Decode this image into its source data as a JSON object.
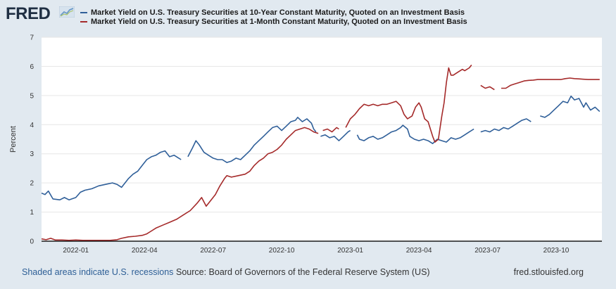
{
  "brand": {
    "name": "FRED",
    "icon": "chart-trend-icon"
  },
  "chart_data": {
    "type": "line",
    "title": "",
    "xlabel": "",
    "ylabel": "Percent",
    "ylim": [
      0,
      7
    ],
    "xlim": [
      0,
      24.5
    ],
    "x_unit": "months since 2021-11-16",
    "grid": true,
    "y_ticks": [
      "0",
      "1",
      "2",
      "3",
      "4",
      "5",
      "6",
      "7"
    ],
    "x_ticks": [
      {
        "label": "2022-01",
        "x": 1.5
      },
      {
        "label": "2022-04",
        "x": 4.5
      },
      {
        "label": "2022-07",
        "x": 7.5
      },
      {
        "label": "2022-10",
        "x": 10.5
      },
      {
        "label": "2023-01",
        "x": 13.5
      },
      {
        "label": "2023-04",
        "x": 16.5
      },
      {
        "label": "2023-07",
        "x": 19.5
      },
      {
        "label": "2023-10",
        "x": 22.5
      }
    ],
    "series": [
      {
        "name": "Market Yield on U.S. Treasury Securities at 10-Year Constant Maturity, Quoted on an Investment Basis",
        "color": "#2f5f99",
        "points": [
          [
            0.0,
            1.65
          ],
          [
            0.15,
            1.6
          ],
          [
            0.3,
            1.72
          ],
          [
            0.5,
            1.45
          ],
          [
            0.8,
            1.42
          ],
          [
            1.0,
            1.5
          ],
          [
            1.2,
            1.42
          ],
          [
            1.5,
            1.5
          ],
          [
            1.7,
            1.68
          ],
          [
            1.9,
            1.75
          ],
          [
            2.2,
            1.8
          ],
          [
            2.5,
            1.9
          ],
          [
            2.8,
            1.95
          ],
          [
            3.1,
            2.0
          ],
          [
            3.3,
            1.95
          ],
          [
            3.5,
            1.85
          ],
          [
            3.8,
            2.15
          ],
          [
            4.0,
            2.3
          ],
          [
            4.2,
            2.4
          ],
          [
            4.4,
            2.6
          ],
          [
            4.6,
            2.8
          ],
          [
            4.8,
            2.9
          ],
          [
            5.0,
            2.95
          ],
          [
            5.2,
            3.05
          ],
          [
            5.4,
            3.1
          ],
          [
            5.6,
            2.9
          ],
          [
            5.8,
            2.95
          ],
          [
            6.0,
            2.85
          ],
          [
            6.1,
            2.8
          ],
          null,
          [
            6.4,
            2.9
          ],
          [
            6.6,
            3.2
          ],
          [
            6.75,
            3.45
          ],
          [
            6.9,
            3.3
          ],
          [
            7.1,
            3.05
          ],
          [
            7.3,
            2.95
          ],
          [
            7.5,
            2.85
          ],
          [
            7.7,
            2.8
          ],
          [
            7.9,
            2.8
          ],
          [
            8.1,
            2.7
          ],
          [
            8.3,
            2.75
          ],
          [
            8.5,
            2.85
          ],
          [
            8.7,
            2.8
          ],
          [
            8.9,
            2.95
          ],
          [
            9.1,
            3.1
          ],
          [
            9.3,
            3.3
          ],
          [
            9.5,
            3.45
          ],
          [
            9.7,
            3.6
          ],
          [
            9.9,
            3.75
          ],
          [
            10.1,
            3.9
          ],
          [
            10.3,
            3.95
          ],
          [
            10.5,
            3.8
          ],
          [
            10.7,
            3.95
          ],
          [
            10.9,
            4.1
          ],
          [
            11.1,
            4.15
          ],
          [
            11.2,
            4.25
          ],
          [
            11.4,
            4.1
          ],
          [
            11.6,
            4.2
          ],
          [
            11.8,
            4.05
          ],
          [
            11.9,
            3.85
          ],
          [
            12.0,
            3.75
          ],
          null,
          [
            12.2,
            3.6
          ],
          [
            12.4,
            3.65
          ],
          [
            12.6,
            3.55
          ],
          [
            12.8,
            3.6
          ],
          [
            13.0,
            3.45
          ],
          [
            13.2,
            3.6
          ],
          [
            13.4,
            3.75
          ],
          [
            13.5,
            3.8
          ],
          null,
          [
            13.8,
            3.65
          ],
          [
            13.9,
            3.5
          ],
          [
            14.1,
            3.45
          ],
          [
            14.3,
            3.55
          ],
          [
            14.5,
            3.6
          ],
          [
            14.7,
            3.5
          ],
          [
            14.9,
            3.55
          ],
          [
            15.1,
            3.65
          ],
          [
            15.3,
            3.75
          ],
          [
            15.5,
            3.8
          ],
          [
            15.7,
            3.9
          ],
          [
            15.8,
            3.98
          ],
          [
            16.0,
            3.85
          ],
          [
            16.1,
            3.6
          ],
          [
            16.3,
            3.5
          ],
          [
            16.5,
            3.45
          ],
          [
            16.7,
            3.5
          ],
          [
            16.9,
            3.45
          ],
          [
            17.1,
            3.35
          ],
          [
            17.3,
            3.5
          ],
          [
            17.5,
            3.45
          ],
          [
            17.7,
            3.4
          ],
          [
            17.9,
            3.55
          ],
          [
            18.1,
            3.5
          ],
          [
            18.3,
            3.55
          ],
          [
            18.5,
            3.65
          ],
          [
            18.7,
            3.75
          ],
          [
            18.9,
            3.85
          ],
          null,
          [
            19.2,
            3.75
          ],
          [
            19.4,
            3.8
          ],
          [
            19.6,
            3.75
          ],
          [
            19.8,
            3.85
          ],
          [
            20.0,
            3.8
          ],
          [
            20.2,
            3.9
          ],
          [
            20.4,
            3.85
          ],
          [
            20.6,
            3.95
          ],
          [
            20.8,
            4.05
          ],
          [
            21.0,
            4.15
          ],
          [
            21.2,
            4.2
          ],
          [
            21.4,
            4.1
          ],
          null,
          [
            21.8,
            4.3
          ],
          [
            22.0,
            4.25
          ],
          [
            22.2,
            4.35
          ],
          [
            22.4,
            4.5
          ],
          [
            22.6,
            4.65
          ],
          [
            22.8,
            4.8
          ],
          [
            23.0,
            4.75
          ],
          [
            23.15,
            4.98
          ],
          [
            23.3,
            4.85
          ],
          [
            23.5,
            4.9
          ],
          [
            23.7,
            4.6
          ],
          [
            23.8,
            4.75
          ],
          [
            24.0,
            4.5
          ],
          [
            24.2,
            4.6
          ],
          [
            24.4,
            4.45
          ]
        ]
      },
      {
        "name": "Market Yield on U.S. Treasury Securities at 1-Month Constant Maturity, Quoted on an Investment Basis",
        "color": "#a52a2a",
        "points": [
          [
            0.0,
            0.08
          ],
          [
            0.2,
            0.05
          ],
          [
            0.4,
            0.1
          ],
          [
            0.6,
            0.04
          ],
          [
            0.9,
            0.04
          ],
          [
            1.2,
            0.03
          ],
          [
            1.5,
            0.04
          ],
          [
            1.8,
            0.03
          ],
          [
            2.1,
            0.03
          ],
          [
            2.4,
            0.03
          ],
          [
            2.7,
            0.03
          ],
          [
            3.0,
            0.03
          ],
          [
            3.3,
            0.05
          ],
          [
            3.5,
            0.1
          ],
          [
            3.8,
            0.15
          ],
          [
            4.1,
            0.17
          ],
          [
            4.4,
            0.2
          ],
          [
            4.6,
            0.25
          ],
          [
            4.8,
            0.35
          ],
          [
            5.0,
            0.45
          ],
          [
            5.3,
            0.55
          ],
          [
            5.6,
            0.65
          ],
          [
            5.9,
            0.75
          ],
          [
            6.2,
            0.9
          ],
          [
            6.5,
            1.05
          ],
          [
            6.8,
            1.3
          ],
          [
            7.0,
            1.5
          ],
          [
            7.2,
            1.2
          ],
          [
            7.4,
            1.4
          ],
          [
            7.6,
            1.6
          ],
          [
            7.8,
            1.9
          ],
          [
            8.0,
            2.15
          ],
          [
            8.1,
            2.25
          ],
          [
            8.3,
            2.2
          ],
          [
            8.6,
            2.25
          ],
          [
            8.9,
            2.3
          ],
          [
            9.1,
            2.4
          ],
          [
            9.3,
            2.6
          ],
          [
            9.5,
            2.75
          ],
          [
            9.7,
            2.85
          ],
          [
            9.9,
            3.0
          ],
          [
            10.1,
            3.05
          ],
          [
            10.3,
            3.15
          ],
          [
            10.5,
            3.3
          ],
          [
            10.7,
            3.5
          ],
          [
            10.9,
            3.65
          ],
          [
            11.1,
            3.8
          ],
          [
            11.3,
            3.85
          ],
          [
            11.5,
            3.9
          ],
          [
            11.7,
            3.85
          ],
          [
            11.9,
            3.75
          ],
          [
            12.1,
            3.7
          ],
          null,
          [
            12.3,
            3.8
          ],
          [
            12.5,
            3.85
          ],
          [
            12.7,
            3.75
          ],
          [
            12.9,
            3.9
          ],
          [
            13.0,
            3.85
          ],
          null,
          [
            13.3,
            3.9
          ],
          [
            13.5,
            4.2
          ],
          [
            13.7,
            4.35
          ],
          [
            13.9,
            4.55
          ],
          [
            14.1,
            4.7
          ],
          [
            14.3,
            4.65
          ],
          [
            14.5,
            4.7
          ],
          [
            14.7,
            4.65
          ],
          [
            14.9,
            4.7
          ],
          [
            15.1,
            4.7
          ],
          [
            15.3,
            4.75
          ],
          [
            15.5,
            4.8
          ],
          [
            15.7,
            4.65
          ],
          [
            15.85,
            4.35
          ],
          [
            16.0,
            4.2
          ],
          [
            16.2,
            4.3
          ],
          [
            16.35,
            4.6
          ],
          [
            16.5,
            4.75
          ],
          [
            16.6,
            4.6
          ],
          [
            16.75,
            4.2
          ],
          [
            16.9,
            4.1
          ],
          [
            17.1,
            3.6
          ],
          [
            17.2,
            3.4
          ],
          [
            17.35,
            3.5
          ],
          [
            17.5,
            4.3
          ],
          [
            17.6,
            4.75
          ],
          [
            17.7,
            5.45
          ],
          [
            17.8,
            5.95
          ],
          [
            17.9,
            5.7
          ],
          [
            18.0,
            5.7
          ],
          [
            18.2,
            5.8
          ],
          [
            18.4,
            5.9
          ],
          [
            18.5,
            5.85
          ],
          [
            18.7,
            5.95
          ],
          [
            18.8,
            6.05
          ],
          null,
          [
            19.2,
            5.35
          ],
          [
            19.4,
            5.25
          ],
          [
            19.6,
            5.3
          ],
          [
            19.8,
            5.2
          ],
          null,
          [
            20.1,
            5.25
          ],
          [
            20.3,
            5.25
          ],
          [
            20.5,
            5.35
          ],
          [
            20.7,
            5.4
          ],
          [
            20.9,
            5.45
          ],
          [
            21.1,
            5.5
          ],
          [
            21.3,
            5.52
          ],
          [
            21.5,
            5.53
          ],
          [
            21.7,
            5.55
          ],
          [
            21.9,
            5.55
          ],
          [
            22.1,
            5.55
          ],
          [
            22.3,
            5.55
          ],
          [
            22.5,
            5.55
          ],
          [
            22.7,
            5.55
          ],
          [
            22.9,
            5.58
          ],
          [
            23.1,
            5.6
          ],
          [
            23.3,
            5.58
          ],
          [
            23.5,
            5.57
          ],
          [
            23.7,
            5.56
          ],
          [
            23.9,
            5.55
          ],
          [
            24.1,
            5.55
          ],
          [
            24.4,
            5.55
          ]
        ]
      }
    ]
  },
  "footer": {
    "recession_note": "Shaded areas indicate U.S. recessions",
    "source": "Source: Board of Governors of the Federal Reserve System (US)",
    "url": "fred.stlouisfed.org"
  }
}
